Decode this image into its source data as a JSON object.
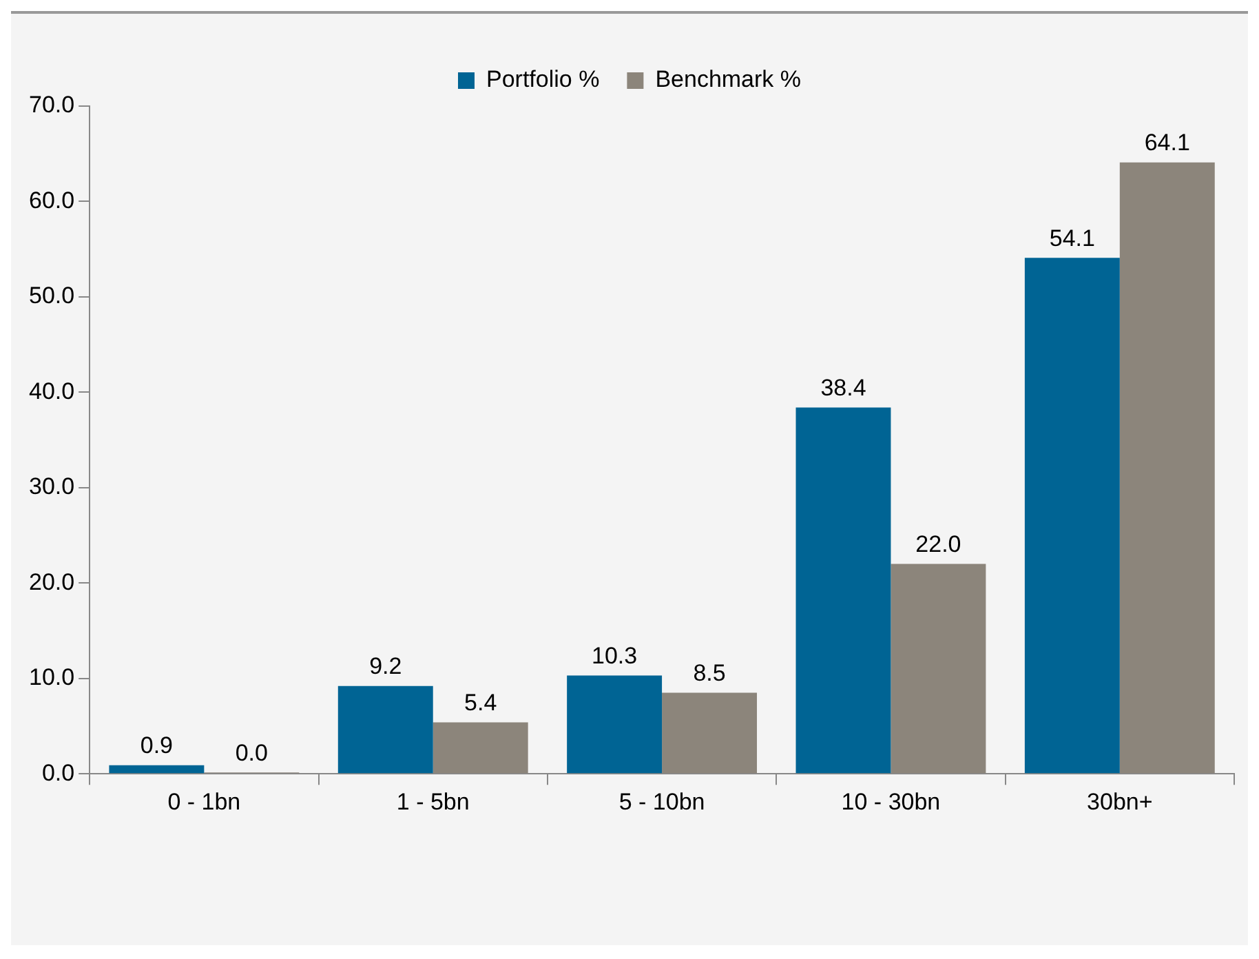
{
  "chart_data": {
    "type": "bar",
    "categories": [
      "0 - 1bn",
      "1 - 5bn",
      "5 - 10bn",
      "10 - 30bn",
      "30bn+"
    ],
    "series": [
      {
        "name": "Portfolio %",
        "color": "#006494",
        "values": [
          0.9,
          9.2,
          10.3,
          38.4,
          54.1
        ],
        "value_labels": [
          "0.9",
          "9.2",
          "10.3",
          "38.4",
          "54.1"
        ]
      },
      {
        "name": "Benchmark %",
        "color": "#8c857b",
        "values": [
          0.0,
          5.4,
          8.5,
          22.0,
          64.1
        ],
        "value_labels": [
          "0.0",
          "5.4",
          "8.5",
          "22.0",
          "64.1"
        ]
      }
    ],
    "ylim": [
      0,
      70
    ],
    "yticks": [
      {
        "value": 0,
        "label": "0.0"
      },
      {
        "value": 10,
        "label": "10.0"
      },
      {
        "value": 20,
        "label": "20.0"
      },
      {
        "value": 30,
        "label": "30.0"
      },
      {
        "value": 40,
        "label": "40.0"
      },
      {
        "value": 50,
        "label": "50.0"
      },
      {
        "value": 60,
        "label": "60.0"
      },
      {
        "value": 70,
        "label": "70.0"
      }
    ],
    "grid": false,
    "legend": "top"
  }
}
